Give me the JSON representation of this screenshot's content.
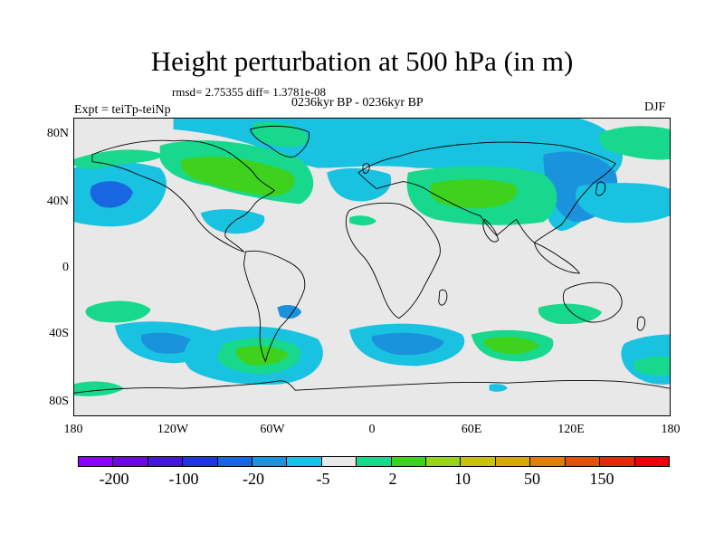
{
  "title": "Height perturbation at 500 hPa (in m)",
  "stats": "rmsd= 2.75355 diff= 1.3781e-08",
  "period": "0236kyr BP - 0236kyr BP",
  "experiment": "Expt = teiTp-teiNp",
  "season": "DJF",
  "lat_labels": [
    "80N",
    "40N",
    "0",
    "40S",
    "80S"
  ],
  "lon_labels": [
    "180",
    "120W",
    "60W",
    "0",
    "60E",
    "120E",
    "180"
  ],
  "colorbar": {
    "colors": [
      "#8a00ff",
      "#6a0ae0",
      "#4318d8",
      "#2136e0",
      "#1866e0",
      "#1b93dc",
      "#19c2e0",
      "#e8e8e8",
      "#18d88e",
      "#3ed21e",
      "#9ad31b",
      "#c8c10e",
      "#d7a80a",
      "#e07d0a",
      "#e0520c",
      "#e02a0c",
      "#e8000e"
    ],
    "labels": [
      "-200",
      "-100",
      "-20",
      "-5",
      "2",
      "10",
      "50",
      "150"
    ]
  },
  "map_colors": {
    "background": "#e8e8e8",
    "light_blue": "#19c2e0",
    "mid_blue": "#1b93dc",
    "blue": "#1866e0",
    "light_green": "#18d88e",
    "green": "#3ed21e"
  }
}
